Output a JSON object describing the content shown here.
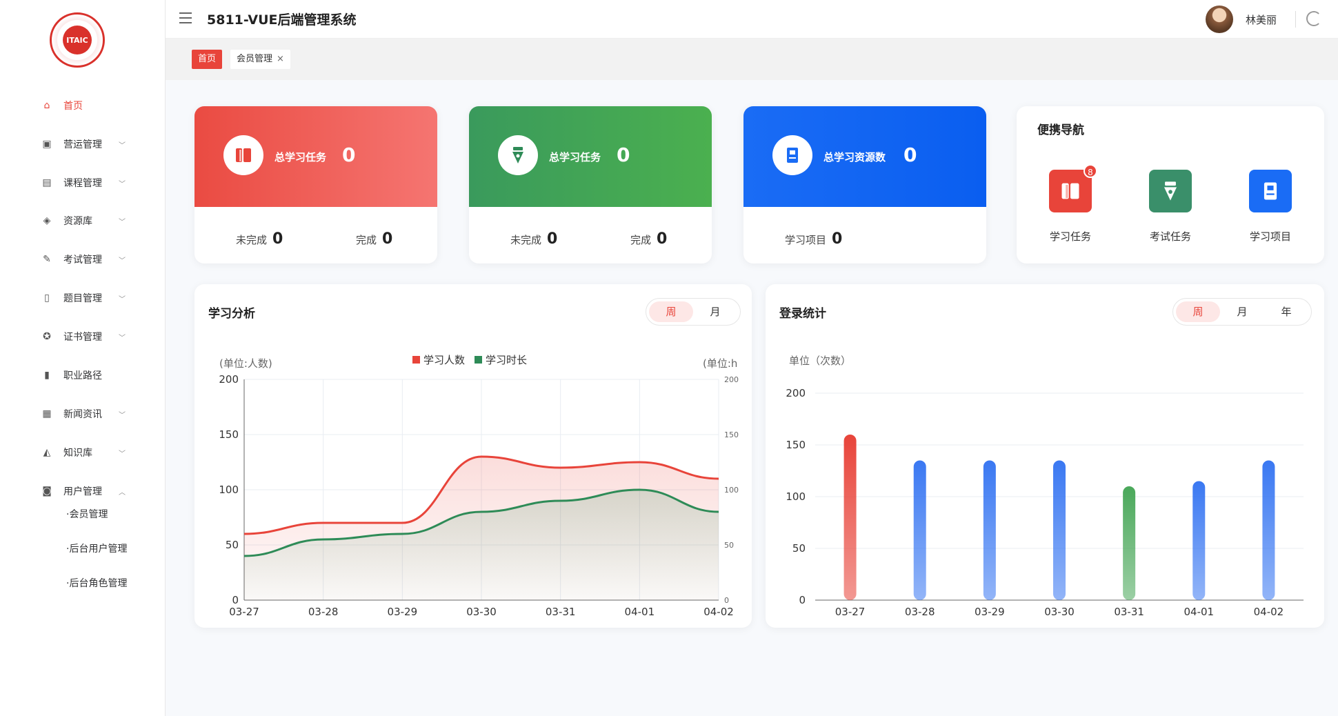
{
  "app": {
    "title": "5811-VUE后端管理系统",
    "logo_text": "ITAIC"
  },
  "user": {
    "name": "林美丽"
  },
  "sidebar": {
    "items": [
      {
        "label": "首页",
        "icon": "home-icon",
        "active": true
      },
      {
        "label": "营运管理",
        "icon": "chart-icon",
        "expandable": true
      },
      {
        "label": "课程管理",
        "icon": "course-icon",
        "expandable": true
      },
      {
        "label": "资源库",
        "icon": "layers-icon",
        "expandable": true
      },
      {
        "label": "考试管理",
        "icon": "pen-icon",
        "expandable": true
      },
      {
        "label": "题目管理",
        "icon": "bookmark-icon",
        "expandable": true
      },
      {
        "label": "证书管理",
        "icon": "award-icon",
        "expandable": true
      },
      {
        "label": "职业路径",
        "icon": "book-icon",
        "expandable": false
      },
      {
        "label": "新闻资讯",
        "icon": "news-icon",
        "expandable": true
      },
      {
        "label": "知识库",
        "icon": "cap-icon",
        "expandable": true
      },
      {
        "label": "用户管理",
        "icon": "user-icon",
        "expandable": true,
        "expanded": true
      }
    ],
    "subitems": [
      "·会员管理",
      "·后台用户管理",
      "·后台角色管理"
    ]
  },
  "tags": {
    "home": "首页",
    "member": "会员管理",
    "close": "×"
  },
  "stats": [
    {
      "title": "总学习任务",
      "value": "0",
      "foot": [
        {
          "label": "未完成",
          "value": "0"
        },
        {
          "label": "完成",
          "value": "0"
        }
      ],
      "color": "#ea4b42",
      "icon": "book-open-icon"
    },
    {
      "title": "总学习任务",
      "value": "0",
      "foot": [
        {
          "label": "未完成",
          "value": "0"
        },
        {
          "label": "完成",
          "value": "0"
        }
      ],
      "color": "#3a9a5c",
      "icon": "pen-nib-icon"
    },
    {
      "title": "总学习资源数",
      "value": "0",
      "foot": [
        {
          "label": "学习项目",
          "value": "0"
        }
      ],
      "color": "#1a6cf5",
      "icon": "document-icon"
    }
  ],
  "quick_nav": {
    "title": "便携导航",
    "items": [
      {
        "label": "学习任务",
        "color": "#e8443a",
        "badge": "8",
        "icon": "book-open-icon"
      },
      {
        "label": "考试任务",
        "color": "#3a8f6a",
        "icon": "pen-nib-icon"
      },
      {
        "label": "学习项目",
        "color": "#1a6cf5",
        "icon": "document-icon"
      }
    ]
  },
  "study_panel": {
    "title": "学习分析",
    "toggle": [
      "周",
      "月"
    ],
    "active": "周"
  },
  "login_panel": {
    "title": "登录统计",
    "toggle": [
      "周",
      "月",
      "年"
    ],
    "active": "周"
  },
  "chart_data": [
    {
      "type": "line",
      "x": [
        "03-27",
        "03-28",
        "03-29",
        "03-30",
        "03-31",
        "04-01",
        "04-02"
      ],
      "series": [
        {
          "name": "学习人数",
          "values": [
            60,
            70,
            70,
            130,
            120,
            125,
            110
          ],
          "color": "#e8443a"
        },
        {
          "name": "学习时长",
          "values": [
            40,
            55,
            60,
            80,
            90,
            100,
            80
          ],
          "color": "#2e8b57"
        }
      ],
      "ylabel": "(单位:人数)",
      "y2label": "(单位:h",
      "ylim": [
        0,
        200
      ],
      "yticks": [
        0,
        50,
        100,
        150,
        200
      ],
      "y2ticks": [
        "0",
        "50",
        "100",
        "150",
        "200"
      ],
      "legend": "top-center",
      "grid": true
    },
    {
      "type": "bar",
      "categories": [
        "03-27",
        "03-28",
        "03-29",
        "03-30",
        "03-31",
        "04-01",
        "04-02"
      ],
      "values": [
        160,
        135,
        135,
        135,
        110,
        115,
        135
      ],
      "colors": [
        "#e8443a",
        "#3a78f2",
        "#3a78f2",
        "#3a78f2",
        "#4aa85a",
        "#3a78f2",
        "#3a78f2"
      ],
      "ylabel": "单位（次数）",
      "ylim": [
        0,
        200
      ],
      "yticks": [
        0,
        50,
        100,
        150,
        200
      ],
      "grid": true
    }
  ]
}
